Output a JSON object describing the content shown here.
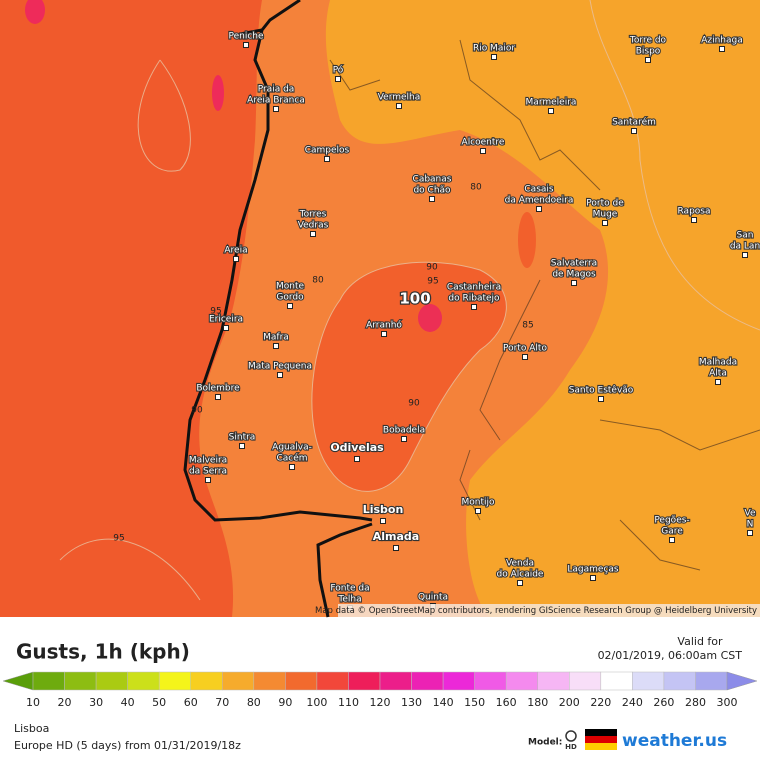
{
  "map": {
    "places": [
      [
        "Peniche"
      ],
      [
        "Pó"
      ],
      [
        "Rio Maior"
      ],
      [
        "Torre do",
        "Bispo"
      ],
      [
        "Azinhaga"
      ],
      [
        "Praia da",
        "Areia Branca"
      ],
      [
        "Vermelha"
      ],
      [
        "Marmeleira"
      ],
      [
        "Santarém"
      ],
      [
        "Alcoentre"
      ],
      [
        "Campelos"
      ],
      [
        "Cabanas",
        "do Chão"
      ],
      [
        "Casais",
        "da Amendoeira"
      ],
      [
        "Porto de",
        "Muge"
      ],
      [
        "Raposa"
      ],
      [
        "San",
        "da Lan"
      ],
      [
        "Torres",
        "Vedras"
      ],
      [
        "Areia"
      ],
      [
        "Salvaterra",
        "de Magos"
      ],
      [
        "Monte",
        "Gordo"
      ],
      [
        "Castanheira",
        "do Ribatejo"
      ],
      [
        "Ericeira"
      ],
      [
        "Arranhó"
      ],
      [
        "Mafra"
      ],
      [
        "Porto Alto"
      ],
      [
        "Malhada",
        "Alta"
      ],
      [
        "Mata Pequena"
      ],
      [
        "Bolembre"
      ],
      [
        "Santo Estêvão"
      ],
      [
        "Sintra"
      ],
      [
        "Bobadela"
      ],
      [
        "Agualva-",
        "Cacém"
      ],
      [
        "Odivelas"
      ],
      [
        "Malveira",
        "da Serra"
      ],
      [
        "Lisbon"
      ],
      [
        "Montijo"
      ],
      [
        "Almada"
      ],
      [
        "Pegões-",
        "Gare"
      ],
      [
        "Ve",
        "N"
      ],
      [
        "Venda",
        "do Alcaide"
      ],
      [
        "Lagameças"
      ],
      [
        "Fonte da",
        "Telha"
      ],
      [
        "Quinta"
      ]
    ],
    "contours": [
      80,
      80,
      90,
      95,
      100,
      85,
      90,
      90,
      95,
      95
    ],
    "attribution": "Map data © OpenStreetMap contributors, rendering GIScience Research Group @ Heidelberg University"
  },
  "panel": {
    "title": "Gusts, 1h (kph)",
    "valid_label": "Valid for",
    "valid_time": "02/01/2019, 06:00am CST",
    "location": "Lisboa",
    "model_run": "Europe HD (5 days) from 01/31/2019/18z",
    "model_label": "Model:",
    "model_badge": "HD",
    "brand": "weather.us"
  },
  "scale": {
    "ticks": [
      10,
      20,
      30,
      40,
      50,
      60,
      70,
      80,
      90,
      100,
      110,
      120,
      130,
      140,
      150,
      160,
      180,
      200,
      220,
      240,
      260,
      280,
      300
    ],
    "colors": [
      "#5a9e0a",
      "#6eab0e",
      "#8dbd12",
      "#aacb12",
      "#cce01a",
      "#f4f41a",
      "#f7cf20",
      "#f6ab2c",
      "#f48a32",
      "#f26a2e",
      "#f2473a",
      "#ee1e5a",
      "#ec1e8a",
      "#ec22b4",
      "#ec28d8",
      "#f05ae6",
      "#f48aee",
      "#f6b6f4",
      "#f8def8",
      "#ffffff",
      "#dcdcf8",
      "#c4c4f4",
      "#a8a8ee",
      "#8c8ce8"
    ]
  }
}
